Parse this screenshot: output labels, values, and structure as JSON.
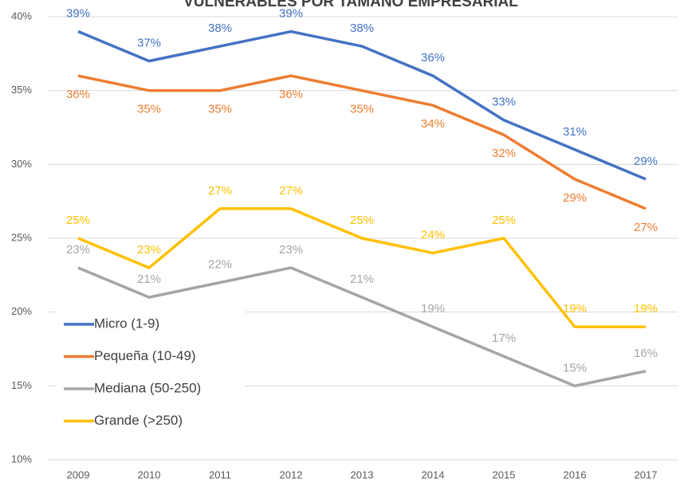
{
  "chart_data": {
    "type": "line",
    "title": "VULNERABLES POR TAMAÑO EMPRESARIAL",
    "categories": [
      "2009",
      "2010",
      "2011",
      "2012",
      "2013",
      "2014",
      "2015",
      "2016",
      "2017"
    ],
    "series": [
      {
        "name": "Micro (1-9)",
        "color": "#4472c4",
        "values": [
          39,
          37,
          38,
          39,
          38,
          36,
          33,
          31,
          29
        ],
        "value_labels": [
          "39%",
          "37%",
          "38%",
          "39%",
          "38%",
          "36%",
          "33%",
          "31%",
          "29%"
        ]
      },
      {
        "name": "Pequeña (10-49)",
        "color": "#ed7d31",
        "values": [
          36,
          35,
          35,
          36,
          35,
          34,
          32,
          29,
          27
        ],
        "value_labels": [
          "36%",
          "35%",
          "35%",
          "36%",
          "35%",
          "34%",
          "32%",
          "29%",
          "27%"
        ]
      },
      {
        "name": "Mediana (50-250)",
        "color": "#a5a5a5",
        "values": [
          23,
          21,
          22,
          23,
          21,
          19,
          17,
          15,
          16
        ],
        "value_labels": [
          "23%",
          "21%",
          "22%",
          "23%",
          "21%",
          "19%",
          "17%",
          "15%",
          "16%"
        ]
      },
      {
        "name": "Grande (>250)",
        "color": "#ffc000",
        "values": [
          25,
          23,
          27,
          27,
          25,
          24,
          25,
          19,
          19
        ],
        "value_labels": [
          "25%",
          "23%",
          "27%",
          "27%",
          "25%",
          "24%",
          "25%",
          "19%",
          "19%"
        ]
      }
    ],
    "ylim": [
      10,
      40
    ],
    "yticks": [
      {
        "value": 10,
        "label": "10%"
      },
      {
        "value": 15,
        "label": "15%"
      },
      {
        "value": 20,
        "label": "20%"
      },
      {
        "value": 25,
        "label": "25%"
      },
      {
        "value": 30,
        "label": "30%"
      },
      {
        "value": 35,
        "label": "35%"
      },
      {
        "value": 40,
        "label": "40%"
      }
    ],
    "grid": true,
    "legend": "left"
  }
}
